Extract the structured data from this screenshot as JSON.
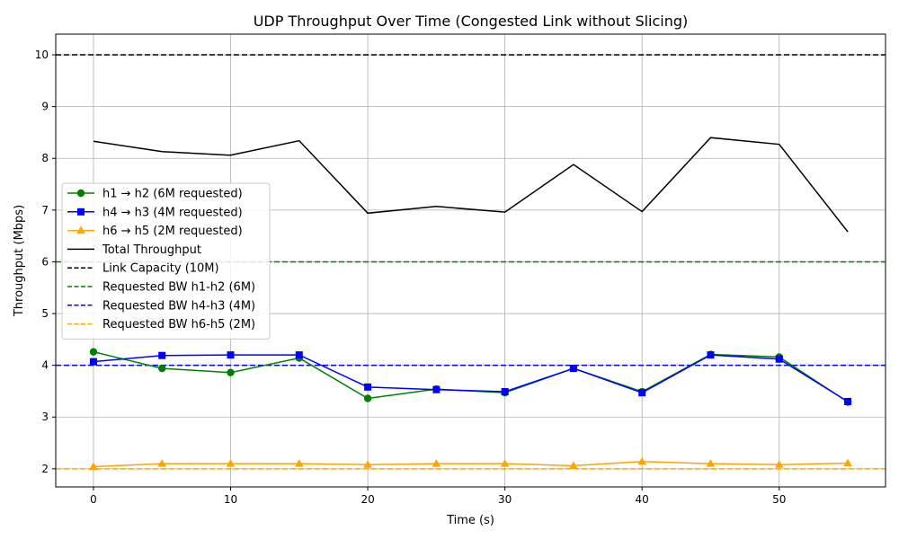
{
  "chart_data": {
    "type": "line",
    "title": "UDP Throughput Over Time (Congested Link without Slicing)",
    "xlabel": "Time (s)",
    "ylabel": "Throughput (Mbps)",
    "xlim": [
      -2.75,
      57.75
    ],
    "ylim": [
      1.65,
      10.4
    ],
    "xticks": [
      0,
      10,
      20,
      30,
      40,
      50
    ],
    "yticks": [
      2,
      3,
      4,
      5,
      6,
      7,
      8,
      9,
      10
    ],
    "grid": true,
    "legend_position": "center-left",
    "x": [
      0,
      5,
      10,
      15,
      20,
      25,
      30,
      35,
      40,
      45,
      50,
      55
    ],
    "series": [
      {
        "name": "h1 → h2 (6M requested)",
        "color": "#008000",
        "marker": "circle",
        "style": "solid",
        "values": [
          4.26,
          3.94,
          3.86,
          4.14,
          3.36,
          3.54,
          3.47,
          3.94,
          3.49,
          4.21,
          4.16,
          3.29
        ]
      },
      {
        "name": "h4 → h3 (4M requested)",
        "color": "#0000ff",
        "marker": "square",
        "style": "solid",
        "values": [
          4.07,
          4.19,
          4.2,
          4.2,
          3.58,
          3.53,
          3.49,
          3.94,
          3.47,
          4.2,
          4.12,
          3.3
        ]
      },
      {
        "name": "h6 → h5 (2M requested)",
        "color": "#ffa500",
        "marker": "triangle",
        "style": "solid",
        "values": [
          2.04,
          2.1,
          2.1,
          2.1,
          2.08,
          2.1,
          2.1,
          2.06,
          2.14,
          2.1,
          2.08,
          2.11
        ]
      },
      {
        "name": "Total Throughput",
        "color": "#000000",
        "marker": "none",
        "style": "solid",
        "values": [
          8.33,
          8.13,
          8.06,
          8.34,
          6.94,
          7.07,
          6.96,
          7.88,
          6.97,
          8.4,
          8.27,
          6.58
        ]
      }
    ],
    "reference_lines": [
      {
        "name": "Link Capacity (10M)",
        "color": "#000000",
        "y": 10
      },
      {
        "name": "Requested BW h1-h2 (6M)",
        "color": "#008000",
        "y": 6
      },
      {
        "name": "Requested BW h4-h3 (4M)",
        "color": "#0000ff",
        "y": 4
      },
      {
        "name": "Requested BW h6-h5 (2M)",
        "color": "#ffa500",
        "y": 2
      }
    ]
  }
}
